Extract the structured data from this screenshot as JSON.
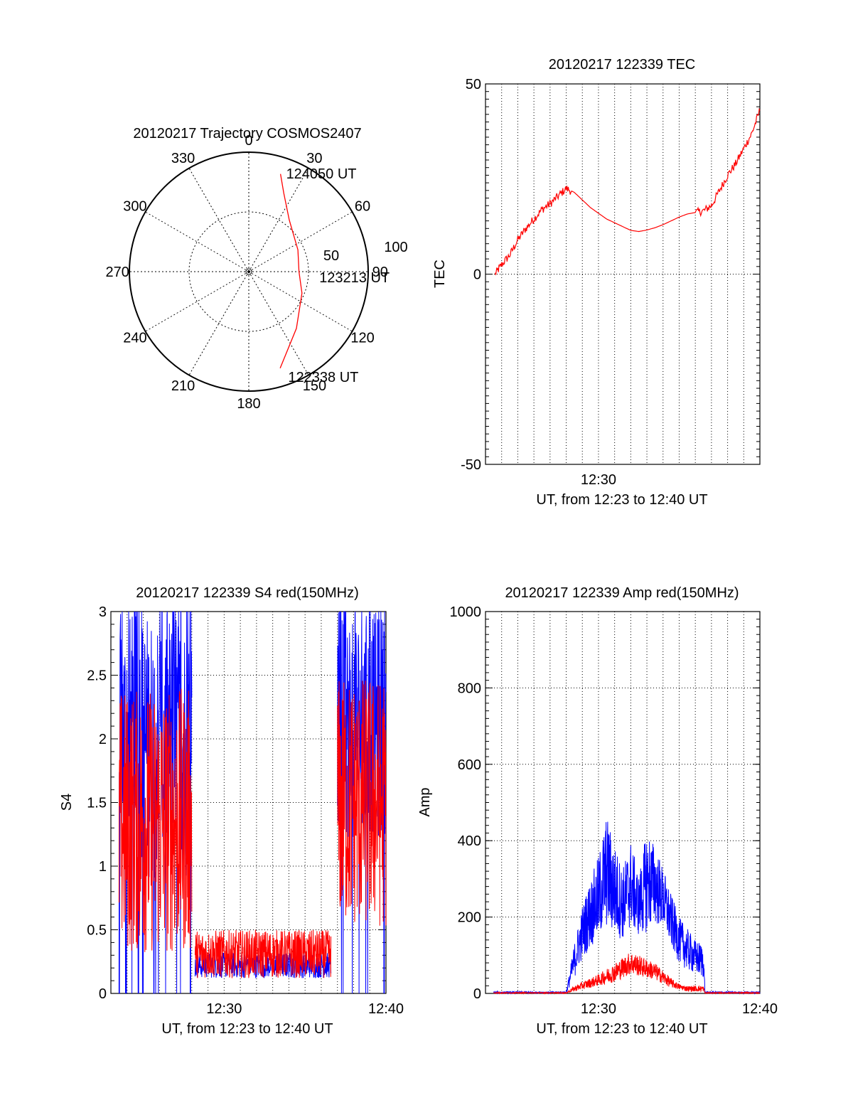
{
  "chart_data": [
    {
      "type": "polar",
      "title": "20120217 Trajectory COSMOS2407",
      "azimuth_labels": [
        "0",
        "30",
        "60",
        "90",
        "120",
        "150",
        "180",
        "210",
        "240",
        "270",
        "300",
        "330"
      ],
      "radial_labels": [
        "50",
        "100"
      ],
      "elevation_rings": [
        50,
        100
      ],
      "trajectory_color": "#ff0000",
      "trajectory": [
        {
          "az": 18,
          "r": 86
        },
        {
          "az": 24,
          "r": 72
        },
        {
          "az": 38,
          "r": 55
        },
        {
          "az": 66,
          "r": 45
        },
        {
          "az": 90,
          "r": 42
        },
        {
          "az": 112,
          "r": 48
        },
        {
          "az": 140,
          "r": 62
        },
        {
          "az": 162,
          "r": 85
        }
      ],
      "annotations": [
        {
          "text": "124050 UT",
          "az": 20,
          "r": 88
        },
        {
          "text": "123213 UT",
          "az": 94,
          "r": 58
        },
        {
          "text": "122338 UT",
          "az": 160,
          "r": 93
        }
      ]
    },
    {
      "type": "line",
      "title": "20120217 122339 TEC",
      "xlabel": "UT, from 12:23 to 12:40 UT",
      "ylabel": "TEC",
      "xlim": [
        23.0,
        40.0
      ],
      "ylim": [
        -50,
        50
      ],
      "xticks": [
        {
          "x": 30.0,
          "label": "12:30"
        }
      ],
      "yticks": [
        {
          "y": 50,
          "label": "50"
        },
        {
          "y": 0,
          "label": "0"
        },
        {
          "y": -50,
          "label": "-50"
        }
      ],
      "grid": true,
      "series": [
        {
          "color": "#ff0000",
          "x": [
            23.6,
            24.0,
            24.5,
            25.0,
            25.5,
            26.0,
            26.5,
            27.0,
            27.5,
            28.0,
            28.5,
            29.0,
            29.5,
            30.0,
            30.5,
            31.0,
            31.5,
            32.0,
            32.5,
            33.0,
            33.5,
            34.0,
            34.5,
            35.0,
            35.5,
            36.0,
            36.5,
            37.0,
            37.5,
            38.0,
            38.5,
            39.0,
            39.5,
            40.0
          ],
          "y": [
            0.0,
            2.5,
            5.0,
            9.0,
            12.0,
            14.5,
            17.0,
            18.5,
            20.5,
            22.5,
            21.5,
            19.5,
            17.5,
            16.0,
            14.5,
            13.5,
            12.5,
            11.5,
            11.2,
            11.6,
            12.2,
            13.0,
            14.0,
            15.0,
            15.8,
            16.2,
            16.6,
            18.0,
            22.0,
            26.0,
            29.0,
            33.0,
            37.0,
            43.0
          ]
        }
      ]
    },
    {
      "type": "line",
      "title": "20120217 122339 S4 red(150MHz)",
      "xlabel": "UT, from 12:23 to 12:40 UT",
      "ylabel": "S4",
      "xlim": [
        23.0,
        40.0
      ],
      "ylim": [
        0,
        3
      ],
      "xticks": [
        {
          "x": 30.0,
          "label": "12:30"
        },
        {
          "x": 40.0,
          "label": "12:40"
        }
      ],
      "yticks": [
        {
          "y": 0,
          "label": "0"
        },
        {
          "y": 0.5,
          "label": "0.5"
        },
        {
          "y": 1,
          "label": "1"
        },
        {
          "y": 1.5,
          "label": "1.5"
        },
        {
          "y": 2,
          "label": "2"
        },
        {
          "y": 2.5,
          "label": "2.5"
        },
        {
          "y": 3,
          "label": "3"
        }
      ],
      "grid": true,
      "series": [
        {
          "color": "#0000ff",
          "segments": [
            {
              "x0": 23.5,
              "x1": 28.0,
              "lo": 0.9,
              "hi": 3.0
            },
            {
              "x0": 28.2,
              "x1": 36.6,
              "lo": 0.12,
              "hi": 0.32
            },
            {
              "x0": 37.0,
              "x1": 40.0,
              "lo": 1.2,
              "hi": 3.0
            }
          ]
        },
        {
          "color": "#ff0000",
          "segments": [
            {
              "x0": 23.5,
              "x1": 28.0,
              "lo": 0.3,
              "hi": 2.4
            },
            {
              "x0": 28.2,
              "x1": 36.6,
              "lo": 0.12,
              "hi": 0.5
            },
            {
              "x0": 37.0,
              "x1": 40.0,
              "lo": 0.5,
              "hi": 2.5
            }
          ]
        }
      ]
    },
    {
      "type": "line",
      "title": "20120217 122339 Amp red(150MHz)",
      "xlabel": "UT, from 12:23 to 12:40 UT",
      "ylabel": "Amp",
      "xlim": [
        23.0,
        40.0
      ],
      "ylim": [
        0,
        1000
      ],
      "xticks": [
        {
          "x": 30.0,
          "label": "12:30"
        },
        {
          "x": 40.0,
          "label": "12:40"
        }
      ],
      "yticks": [
        {
          "y": 0,
          "label": "0"
        },
        {
          "y": 200,
          "label": "200"
        },
        {
          "y": 400,
          "label": "400"
        },
        {
          "y": 600,
          "label": "600"
        },
        {
          "y": 800,
          "label": "800"
        },
        {
          "y": 1000,
          "label": "1000"
        }
      ],
      "grid": true,
      "series": [
        {
          "color": "#0000ff",
          "x": [
            23.5,
            28.0,
            28.5,
            29.0,
            29.5,
            30.0,
            30.5,
            31.0,
            31.5,
            32.0,
            32.5,
            33.0,
            33.5,
            34.0,
            34.5,
            35.0,
            35.5,
            36.0,
            36.5,
            36.6,
            37.0,
            40.0
          ],
          "lo": [
            0,
            0,
            40,
            90,
            120,
            140,
            170,
            150,
            140,
            170,
            150,
            160,
            180,
            170,
            120,
            80,
            60,
            50,
            40,
            0,
            0,
            0
          ],
          "hi": [
            5,
            5,
            130,
            230,
            300,
            360,
            470,
            390,
            330,
            400,
            310,
            430,
            390,
            330,
            260,
            200,
            170,
            140,
            130,
            5,
            5,
            5
          ]
        },
        {
          "color": "#ff0000",
          "x": [
            23.5,
            28.0,
            28.5,
            29.0,
            29.5,
            30.0,
            30.5,
            31.0,
            31.5,
            32.0,
            32.5,
            33.0,
            33.5,
            34.0,
            34.5,
            35.0,
            35.5,
            36.0,
            36.5,
            36.6,
            37.0,
            40.0
          ],
          "lo": [
            0,
            0,
            5,
            10,
            15,
            20,
            25,
            30,
            40,
            50,
            45,
            40,
            35,
            25,
            15,
            10,
            5,
            5,
            5,
            0,
            0,
            0
          ],
          "hi": [
            3,
            3,
            20,
            30,
            40,
            50,
            65,
            80,
            95,
            110,
            100,
            90,
            80,
            60,
            40,
            25,
            20,
            20,
            20,
            3,
            3,
            3
          ]
        }
      ]
    }
  ]
}
